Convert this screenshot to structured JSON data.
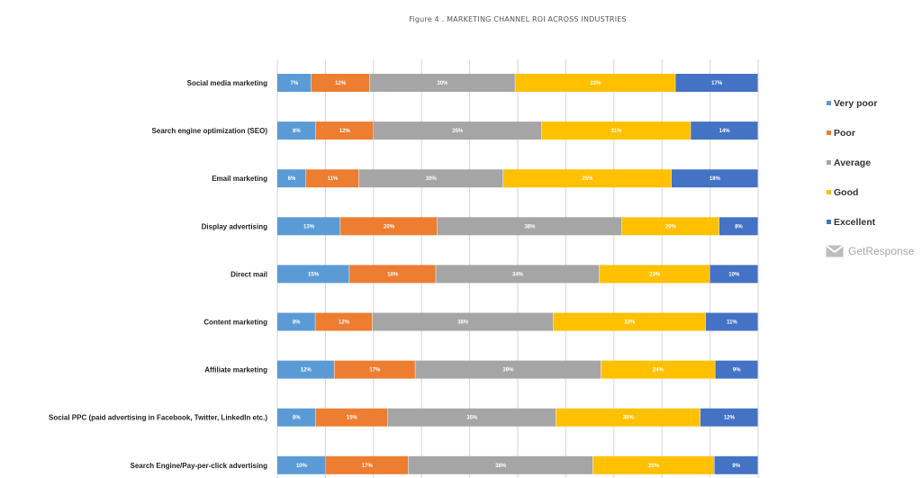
{
  "chart_data": {
    "type": "bar",
    "orientation": "horizontal",
    "stacked": true,
    "title": "Figure 4 . MARKETING CHANNEL ROI ACROSS INDUSTRIES",
    "xlim": [
      0,
      100
    ],
    "grid": true,
    "legend_position": "right",
    "categories": [
      "Social media marketing",
      "Search engine optimization (SEO)",
      "Email marketing",
      "Display advertising",
      "Direct mail",
      "Content marketing",
      "Affiliate marketing",
      "Social PPC (paid advertising in Facebook, Twitter, LinkedIn etc.)",
      "Search Engine/Pay-per-click advertising"
    ],
    "series": [
      {
        "name": "Very poor",
        "color": "#5b9bd5",
        "values": [
          7,
          8,
          6,
          13,
          15,
          8,
          12,
          8,
          10
        ]
      },
      {
        "name": "Poor",
        "color": "#ed7d31",
        "values": [
          12,
          12,
          11,
          20,
          18,
          12,
          17,
          15,
          17
        ]
      },
      {
        "name": "Average",
        "color": "#a5a5a5",
        "values": [
          30,
          35,
          30,
          38,
          34,
          38,
          39,
          35,
          38
        ]
      },
      {
        "name": "Good",
        "color": "#ffc000",
        "values": [
          33,
          31,
          35,
          20,
          23,
          32,
          24,
          30,
          25
        ]
      },
      {
        "name": "Excellent",
        "color": "#4472c4",
        "values": [
          17,
          14,
          18,
          8,
          10,
          11,
          9,
          12,
          9
        ]
      }
    ]
  },
  "brand": {
    "name": "GetResponse",
    "icon": "envelope-icon"
  }
}
